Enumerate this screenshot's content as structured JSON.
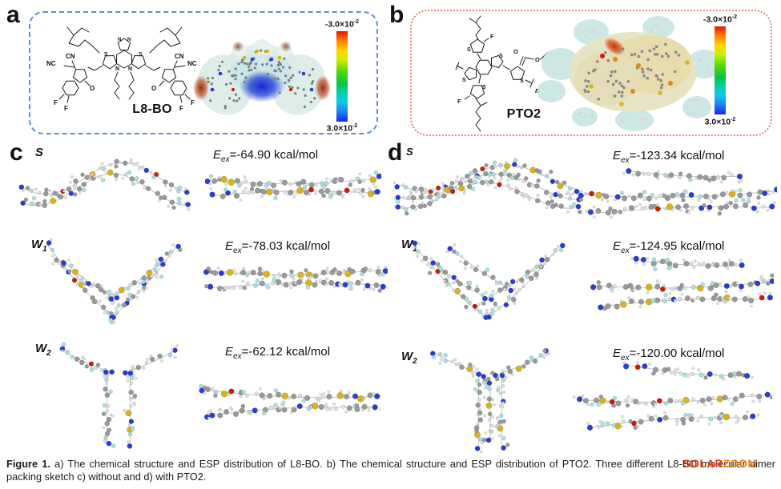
{
  "panel_a": {
    "label": "a",
    "molecule_name": "L8-BO",
    "colorbar": {
      "top": "-3.0×10",
      "top_exp": "-2",
      "bottom": "3.0×10",
      "bottom_exp": "-2"
    },
    "sketch_labels": {
      "nc": "NC",
      "cn": "CN",
      "n": "N",
      "s": "S",
      "o": "O",
      "f": "F"
    }
  },
  "panel_b": {
    "label": "b",
    "molecule_name": "PTO2",
    "colorbar": {
      "top": "-3.0×10",
      "top_exp": "-2",
      "bottom": "3.0×10",
      "bottom_exp": "-2"
    },
    "sketch_labels": {
      "s": "S",
      "f": "F",
      "o": "O",
      "n": "n"
    }
  },
  "panel_c": {
    "label": "c",
    "rows": [
      {
        "config": "S",
        "config_sub": "",
        "energy_symbol": "E",
        "energy_sub": "ex",
        "energy_value": "=-64.90 kcal/mol"
      },
      {
        "config": "W",
        "config_sub": "1",
        "energy_symbol": "E",
        "energy_sub": "ex",
        "energy_value": "=-78.03 kcal/mol"
      },
      {
        "config": "W",
        "config_sub": "2",
        "energy_symbol": "E",
        "energy_sub": "ex",
        "energy_value": "=-62.12 kcal/mol"
      }
    ]
  },
  "panel_d": {
    "label": "d",
    "rows": [
      {
        "config": "S",
        "config_sub": "",
        "energy_symbol": "E",
        "energy_sub": "ex",
        "energy_value": "=-123.34 kcal/mol"
      },
      {
        "config": "W",
        "config_sub": "1",
        "energy_symbol": "E",
        "energy_sub": "ex",
        "energy_value": "=-124.95 kcal/mol"
      },
      {
        "config": "W",
        "config_sub": "2",
        "energy_symbol": "E",
        "energy_sub": "ex",
        "energy_value": "=-120.00 kcal/mol"
      }
    ]
  },
  "caption": {
    "bold": "Figure 1.",
    "text": " a) The chemical structure and ESP distribution of L8-BO. b) The chemical structure and ESP distribution of PTO2. Three different L8-BO molecular dimer packing sketch c) without and d) with PTO2."
  },
  "watermark": {
    "part1": "SOLAR",
    "part2": "ZOOM"
  },
  "colors": {
    "panel_a_border": "#5f8bd9",
    "panel_b_border": "#ef8080",
    "watermark_red": "#e8380d",
    "watermark_orange": "#f5820c",
    "atoms": {
      "C": "#999999",
      "H": "#e2e2e2",
      "N": "#2a3cd6",
      "S": "#d9b31c",
      "O": "#cc1b00",
      "F": "#a8e0df"
    }
  }
}
